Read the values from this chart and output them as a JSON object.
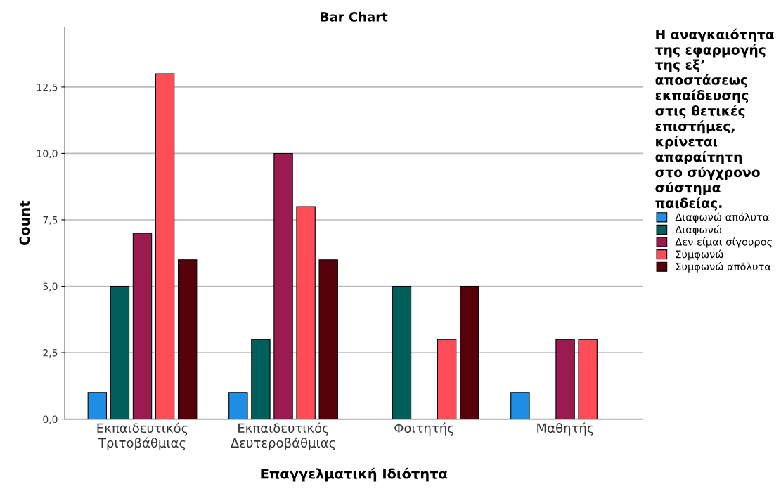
{
  "chart_data": {
    "type": "bar",
    "title": "Bar Chart",
    "xlabel": "Επαγγελματική Ιδιότητα",
    "ylabel": "Count",
    "legend_title": "Η αναγκαιότητα\nτης εφαρμογής\nτης εξ’\nαποστάσεως\nεκπαίδευσης\nστις θετικές\nεπιστήμες,\nκρίνεται\nαπαραίτητη\nστο σύγχρονο\nσύστημα\nπαιδείας.",
    "categories": [
      "Εκπαιδευτικός\nΤριτοβάθμιας",
      "Εκπαιδευτικός\nΔευτεροβάθμιας",
      "Φοιτητής",
      "Μαθητής"
    ],
    "series": [
      {
        "name": "Διαφωνώ απόλυτα",
        "color": "#1f8ee6",
        "values": [
          1,
          1,
          null,
          1
        ]
      },
      {
        "name": "Διαφωνώ",
        "color": "#005f5a",
        "values": [
          5,
          3,
          5,
          null
        ]
      },
      {
        "name": "Δεν είμαι σίγουρος",
        "color": "#9b1b50",
        "values": [
          7,
          10,
          null,
          3
        ]
      },
      {
        "name": "Συμφωνώ",
        "color": "#ff4d57",
        "values": [
          13,
          8,
          3,
          3
        ]
      },
      {
        "name": "Συμφωνώ απόλυτα",
        "color": "#56000a",
        "values": [
          6,
          6,
          5,
          null
        ]
      }
    ],
    "ylim": [
      0,
      14.75
    ],
    "yticks": [
      {
        "value": 0,
        "label": "0,0"
      },
      {
        "value": 2.5,
        "label": "2,5"
      },
      {
        "value": 5,
        "label": "5,0"
      },
      {
        "value": 7.5,
        "label": "7,5"
      },
      {
        "value": 10,
        "label": "10,0"
      },
      {
        "value": 12.5,
        "label": "12,5"
      }
    ],
    "grid": "y",
    "legend": "right"
  }
}
